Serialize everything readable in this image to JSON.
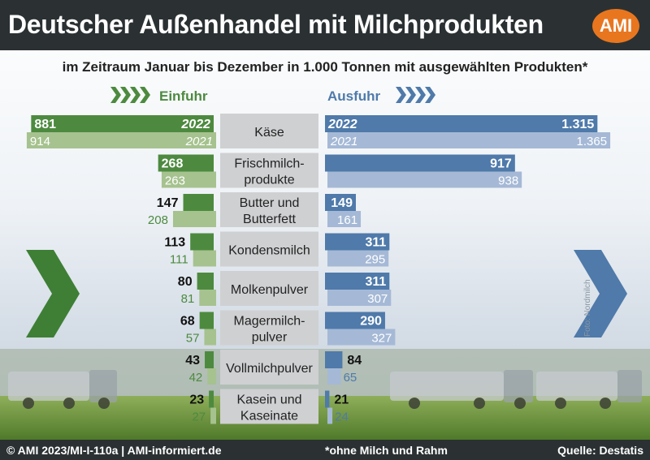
{
  "title": "Deutscher Außenhandel mit Milchprodukten",
  "logo": "AMI",
  "subtitle": "im Zeitraum Januar bis Dezember in 1.000 Tonnen mit ausgewählten Produkten*",
  "footer": {
    "left": "© AMI 2023/MI-I-110a | AMI-informiert.de",
    "middle": "*ohne Milch und Rahm",
    "right": "Quelle: Destatis"
  },
  "photo_credit": "Foto: Nordmilch",
  "colors": {
    "import_2022": "#4d8a3f",
    "import_2021": "#a6c28f",
    "export_2022": "#4f7aaa",
    "export_2021": "#a5b9d6",
    "category_box": "#cfd0d2",
    "header_bar": "#2b3133",
    "logo": "#e8761f"
  },
  "chart_data": {
    "type": "bar",
    "units": "1.000 Tonnen",
    "categories": [
      "Käse",
      "Frischmilch-\nprodukte",
      "Butter und\nButterfett",
      "Kondensmilch",
      "Molkenpulver",
      "Magermilch-\npulver",
      "Vollmilchpulver",
      "Kasein und\nKaseinate"
    ],
    "groups": [
      {
        "name": "Einfuhr",
        "direction": "left",
        "series": [
          {
            "name": "2022",
            "values": [
              881,
              268,
              147,
              113,
              80,
              68,
              43,
              23
            ],
            "labels": [
              "881",
              "268",
              "147",
              "113",
              "80",
              "68",
              "43",
              "23"
            ]
          },
          {
            "name": "2021",
            "values": [
              914,
              263,
              208,
              111,
              81,
              57,
              42,
              27
            ],
            "labels": [
              "914",
              "263",
              "208",
              "111",
              "81",
              "57",
              "42",
              "27"
            ]
          }
        ]
      },
      {
        "name": "Ausfuhr",
        "direction": "right",
        "series": [
          {
            "name": "2022",
            "values": [
              1315,
              917,
              149,
              311,
              311,
              290,
              84,
              21
            ],
            "labels": [
              "1.315",
              "917",
              "149",
              "311",
              "311",
              "290",
              "84",
              "21"
            ]
          },
          {
            "name": "2021",
            "values": [
              1365,
              938,
              161,
              295,
              307,
              327,
              65,
              24
            ],
            "labels": [
              "1.365",
              "938",
              "161",
              "295",
              "307",
              "327",
              "65",
              "24"
            ]
          }
        ]
      }
    ]
  }
}
